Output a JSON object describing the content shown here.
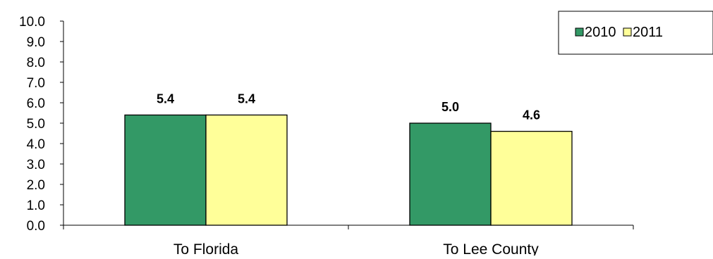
{
  "chart_data": {
    "type": "bar",
    "title": "",
    "xlabel": "",
    "ylabel": "",
    "categories": [
      "To Florida",
      "To Lee County"
    ],
    "series": [
      {
        "name": "2010",
        "values": [
          5.4,
          5.0
        ],
        "color": "#339966"
      },
      {
        "name": "2011",
        "values": [
          5.4,
          4.6
        ],
        "color": "#FFFF99"
      }
    ],
    "ylim": [
      0,
      10
    ],
    "ytick_step": 1,
    "ytick_labels": [
      "0.0",
      "1.0",
      "2.0",
      "3.0",
      "4.0",
      "5.0",
      "6.0",
      "7.0",
      "8.0",
      "9.0",
      "10.0"
    ],
    "data_labels": [
      [
        "5.4",
        "5.0"
      ],
      [
        "5.4",
        "4.6"
      ]
    ],
    "grid": false,
    "legend_position": "top-right"
  }
}
